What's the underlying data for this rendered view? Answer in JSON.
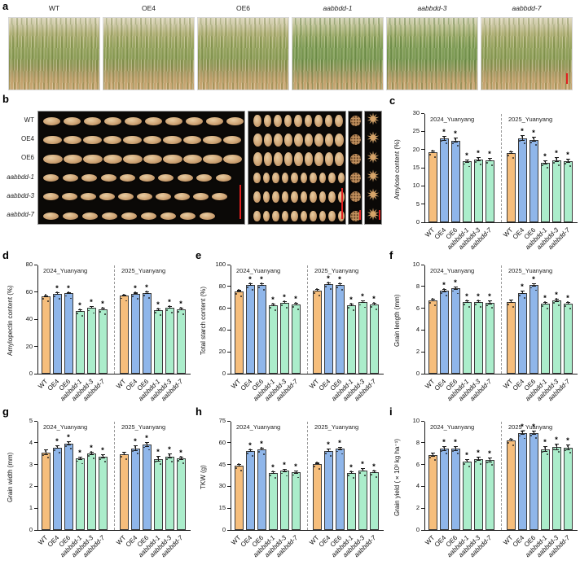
{
  "figure": {
    "description": "Wheat field, grain morphology and starch/yield phenotype figure"
  },
  "colors": {
    "wt_bar": "#F6BE7C",
    "oe_bar": "#8FB6EA",
    "mutant_bar": "#ABEDCB",
    "bar_border": "#3b3b3b",
    "scale_bar": "#E01F1F",
    "divider": "#9a9a9a"
  },
  "genotypes": [
    {
      "label": "WT",
      "italic": false
    },
    {
      "label": "OE4",
      "italic": false
    },
    {
      "label": "OE6",
      "italic": false
    },
    {
      "label": "aabbdd-1",
      "italic": true
    },
    {
      "label": "aabbdd-3",
      "italic": true
    },
    {
      "label": "aabbdd-7",
      "italic": true
    }
  ],
  "panels": {
    "a": {
      "letter": "a",
      "photos": [
        {
          "label": "WT",
          "italic": false,
          "tone": "normal"
        },
        {
          "label": "OE4",
          "italic": false,
          "tone": "normal"
        },
        {
          "label": "OE6",
          "italic": false,
          "tone": "normal"
        },
        {
          "label": "aabbdd-1",
          "italic": true,
          "tone": "green"
        },
        {
          "label": "aabbdd-3",
          "italic": true,
          "tone": "green"
        },
        {
          "label": "aabbdd-7",
          "italic": true,
          "tone": "normal"
        }
      ]
    },
    "b": {
      "letter": "b",
      "rows": [
        {
          "label": "WT",
          "italic": false
        },
        {
          "label": "OE4",
          "italic": false
        },
        {
          "label": "OE6",
          "italic": false
        },
        {
          "label": "aabbdd-1",
          "italic": true
        },
        {
          "label": "aabbdd-3",
          "italic": true
        },
        {
          "label": "aabbdd-7",
          "italic": true
        }
      ]
    }
  },
  "chart_data": [
    {
      "id": "c",
      "letter": "c",
      "type": "bar",
      "ylabel": "Amylose content (%)",
      "ylim": [
        0,
        30
      ],
      "yticks": [
        0,
        5,
        10,
        15,
        20,
        25,
        30
      ],
      "categories": [
        "WT",
        "OE4",
        "OE6",
        "aabbdd-1",
        "aabbdd-3",
        "aabbdd-7"
      ],
      "groups": [
        {
          "title": "2024_Yuanyang",
          "values": [
            19.2,
            23.0,
            22.5,
            16.7,
            17.3,
            17.1
          ],
          "errors": [
            0.2,
            0.5,
            0.5,
            0.4,
            0.4,
            0.4
          ],
          "sig": [
            false,
            true,
            true,
            true,
            true,
            true
          ]
        },
        {
          "title": "2025_Yuanyang",
          "values": [
            19.1,
            23.1,
            22.7,
            16.4,
            17.1,
            16.8
          ],
          "errors": [
            0.2,
            0.6,
            0.6,
            0.4,
            0.5,
            0.4
          ],
          "sig": [
            false,
            true,
            true,
            true,
            true,
            true
          ]
        }
      ]
    },
    {
      "id": "d",
      "letter": "d",
      "type": "bar",
      "ylabel": "Amylopectin content (%)",
      "ylim": [
        0,
        80
      ],
      "yticks": [
        0,
        20,
        40,
        60,
        80
      ],
      "categories": [
        "WT",
        "OE4",
        "OE6",
        "aabbdd-1",
        "aabbdd-3",
        "aabbdd-7"
      ],
      "groups": [
        {
          "title": "2024_Yuanyang",
          "values": [
            56.6,
            58.6,
            58.9,
            46.0,
            48.1,
            47.2
          ],
          "errors": [
            0.4,
            0.5,
            0.5,
            0.6,
            0.6,
            0.6
          ],
          "sig": [
            false,
            true,
            true,
            true,
            true,
            true
          ]
        },
        {
          "title": "2025_Yuanyang",
          "values": [
            57.1,
            58.8,
            59.1,
            46.5,
            48.2,
            47.3
          ],
          "errors": [
            0.4,
            0.5,
            0.5,
            0.6,
            0.6,
            0.6
          ],
          "sig": [
            false,
            true,
            true,
            true,
            true,
            true
          ]
        }
      ]
    },
    {
      "id": "e",
      "letter": "e",
      "type": "bar",
      "ylabel": "Total starch content (%)",
      "ylim": [
        0,
        100
      ],
      "yticks": [
        0,
        20,
        40,
        60,
        80,
        100
      ],
      "categories": [
        "WT",
        "OE4",
        "OE6",
        "aabbdd-1",
        "aabbdd-3",
        "aabbdd-7"
      ],
      "groups": [
        {
          "title": "2024_Yuanyang",
          "values": [
            75.7,
            81.5,
            81.2,
            62.7,
            65.2,
            63.5
          ],
          "errors": [
            0.6,
            0.7,
            0.7,
            0.7,
            0.7,
            0.7
          ],
          "sig": [
            false,
            true,
            true,
            true,
            true,
            true
          ]
        },
        {
          "title": "2025_Yuanyang",
          "values": [
            76.1,
            81.9,
            81.5,
            62.9,
            65.4,
            63.4
          ],
          "errors": [
            0.6,
            0.7,
            0.7,
            0.7,
            0.7,
            0.7
          ],
          "sig": [
            false,
            true,
            true,
            true,
            true,
            true
          ]
        }
      ]
    },
    {
      "id": "f",
      "letter": "f",
      "type": "bar",
      "ylabel": "Grain length (mm)",
      "ylim": [
        0,
        10
      ],
      "yticks": [
        0,
        2,
        4,
        6,
        8,
        10
      ],
      "categories": [
        "WT",
        "OE4",
        "OE6",
        "aabbdd-1",
        "aabbdd-3",
        "aabbdd-7"
      ],
      "groups": [
        {
          "title": "2024_Yuanyang",
          "values": [
            6.7,
            7.6,
            7.8,
            6.6,
            6.6,
            6.5
          ],
          "errors": [
            0.08,
            0.1,
            0.1,
            0.08,
            0.08,
            0.12
          ],
          "sig": [
            false,
            true,
            true,
            true,
            true,
            true
          ]
        },
        {
          "title": "2025_Yuanyang",
          "values": [
            6.6,
            7.4,
            8.1,
            6.4,
            6.7,
            6.45
          ],
          "errors": [
            0.1,
            0.12,
            0.1,
            0.08,
            0.1,
            0.08
          ],
          "sig": [
            false,
            true,
            true,
            true,
            true,
            true
          ]
        }
      ]
    },
    {
      "id": "g",
      "letter": "g",
      "type": "bar",
      "ylabel": "Grain width (mm)",
      "ylim": [
        0,
        5
      ],
      "yticks": [
        0,
        1,
        2,
        3,
        4,
        5
      ],
      "categories": [
        "WT",
        "OE4",
        "OE6",
        "aabbdd-1",
        "aabbdd-3",
        "aabbdd-7"
      ],
      "groups": [
        {
          "title": "2024_Yuanyang",
          "values": [
            3.55,
            3.78,
            3.95,
            3.27,
            3.5,
            3.37
          ],
          "errors": [
            0.1,
            0.06,
            0.08,
            0.06,
            0.05,
            0.08
          ],
          "sig": [
            false,
            true,
            true,
            true,
            true,
            true
          ]
        },
        {
          "title": "2025_Yuanyang",
          "values": [
            3.48,
            3.73,
            3.9,
            3.25,
            3.37,
            3.28
          ],
          "errors": [
            0.06,
            0.1,
            0.09,
            0.1,
            0.1,
            0.06
          ],
          "sig": [
            false,
            true,
            true,
            true,
            true,
            true
          ]
        }
      ]
    },
    {
      "id": "h",
      "letter": "h",
      "type": "bar",
      "ylabel": "TKW (g)",
      "ylim": [
        0,
        75
      ],
      "yticks": [
        0,
        15,
        30,
        45,
        60,
        75
      ],
      "categories": [
        "WT",
        "OE4",
        "OE6",
        "aabbdd-1",
        "aabbdd-3",
        "aabbdd-7"
      ],
      "groups": [
        {
          "title": "2024_Yuanyang",
          "values": [
            44.4,
            54.3,
            55.3,
            39.2,
            40.6,
            39.5
          ],
          "errors": [
            0.5,
            0.7,
            0.7,
            0.6,
            0.7,
            0.6
          ],
          "sig": [
            false,
            true,
            true,
            true,
            true,
            true
          ]
        },
        {
          "title": "2025_Yuanyang",
          "values": [
            45.6,
            54.5,
            55.8,
            39.1,
            41.1,
            39.7
          ],
          "errors": [
            0.5,
            0.7,
            0.7,
            0.6,
            0.7,
            0.6
          ],
          "sig": [
            false,
            true,
            true,
            true,
            true,
            true
          ]
        }
      ]
    },
    {
      "id": "i",
      "letter": "i",
      "type": "bar",
      "ylabel": "Grain yield (×10³ kg ha⁻¹)",
      "ylim": [
        0,
        10
      ],
      "yticks": [
        0,
        2,
        4,
        6,
        8,
        10
      ],
      "categories": [
        "WT",
        "OE4",
        "OE6",
        "aabbdd-1",
        "aabbdd-3",
        "aabbdd-7"
      ],
      "groups": [
        {
          "title": "2024_Yuanyang",
          "values": [
            6.85,
            7.45,
            7.45,
            6.3,
            6.5,
            6.4
          ],
          "errors": [
            0.15,
            0.2,
            0.2,
            0.12,
            0.15,
            0.2
          ],
          "sig": [
            false,
            true,
            true,
            true,
            true,
            true
          ]
        },
        {
          "title": "2025_Yuanyang",
          "values": [
            8.2,
            8.85,
            8.9,
            7.4,
            7.6,
            7.55
          ],
          "errors": [
            0.1,
            0.15,
            0.15,
            0.25,
            0.25,
            0.2
          ],
          "sig": [
            false,
            true,
            true,
            true,
            true,
            true
          ]
        }
      ]
    }
  ]
}
